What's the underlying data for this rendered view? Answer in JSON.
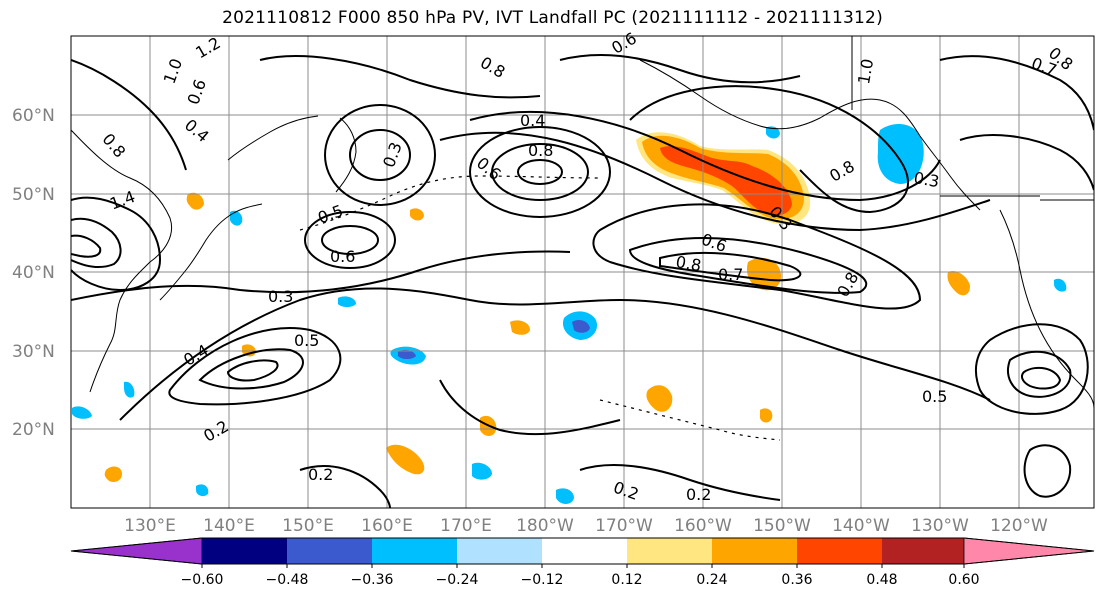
{
  "title": "2021110812 F000 850 hPa PV, IVT Landfall PC (2021111112 - 2021111312)",
  "map": {
    "lat_labels": [
      "60°N",
      "50°N",
      "40°N",
      "30°N",
      "20°N"
    ],
    "lon_labels": [
      "130°E",
      "140°E",
      "150°E",
      "160°E",
      "170°E",
      "180°W",
      "170°W",
      "160°W",
      "150°W",
      "140°W",
      "130°W",
      "120°W"
    ],
    "contour_labels": [
      "1.2",
      "1.0",
      "0.8",
      "0.6",
      "0.4",
      "0.3",
      "0.8",
      "0.6",
      "0.4",
      "0.8",
      "0.6",
      "0.5",
      "0.3",
      "0.6",
      "0.8",
      "0.7",
      "0.8",
      "0.3",
      "0.6",
      "0.5",
      "0.2",
      "0.2",
      "0.2",
      "0.2",
      "0.5",
      "0.8",
      "0.4",
      "0.3",
      "1.0",
      "0.7",
      "0.8",
      "1.4"
    ],
    "colors": {
      "contour": "#000000",
      "grid": "#8c8c8c",
      "coast": "#000000"
    }
  },
  "colorbar": {
    "ticks": [
      "−0.60",
      "−0.48",
      "−0.36",
      "−0.24",
      "−0.12",
      "0.12",
      "0.24",
      "0.36",
      "0.48",
      "0.60"
    ],
    "colors": [
      "#9932cc",
      "#000080",
      "#3a5acd",
      "#00bfff",
      "#b0e2ff",
      "#ffffff",
      "#ffe680",
      "#ffa500",
      "#ff4500",
      "#b22222",
      "#ff88aa"
    ]
  }
}
